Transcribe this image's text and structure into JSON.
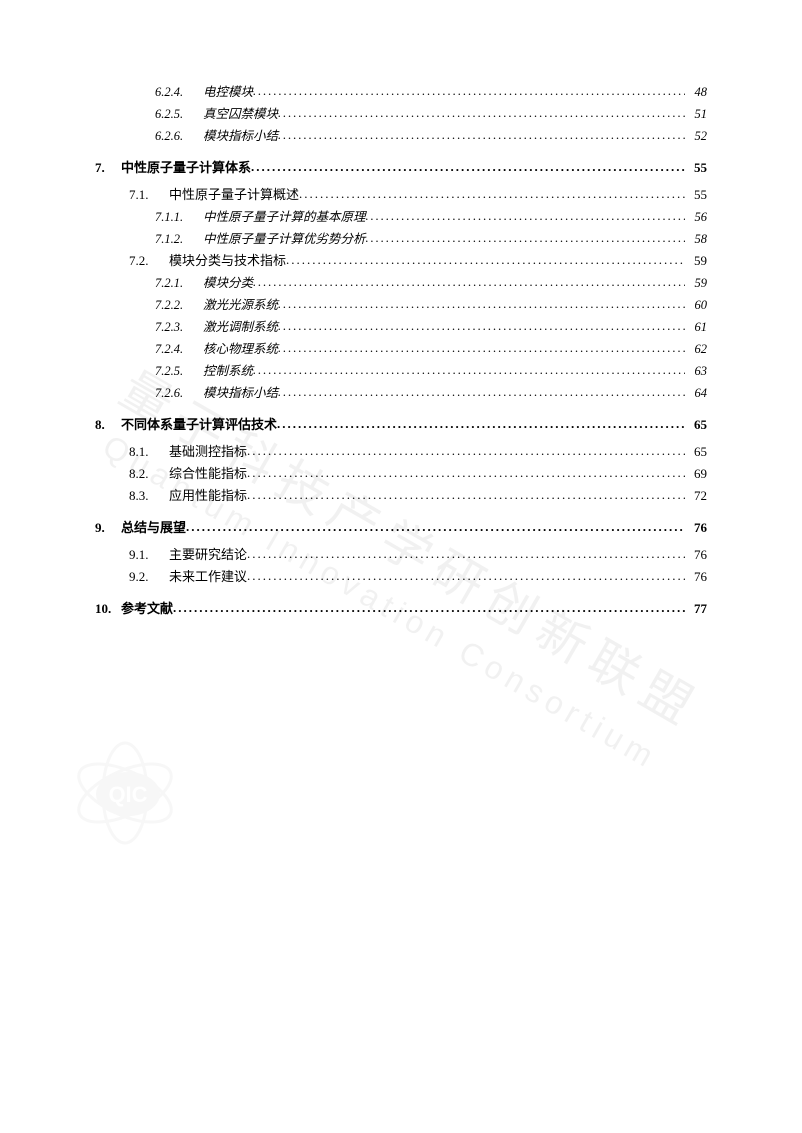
{
  "watermark": {
    "chinese": "量子科技产学研创新联盟",
    "english": "Quantum Innovation Consortium",
    "logo_text": "QIC"
  },
  "dots": "..........................................................................................................................................................................................",
  "toc": [
    {
      "level": 3,
      "num": "6.2.4.",
      "title": "电控模块",
      "page": "48"
    },
    {
      "level": 3,
      "num": "6.2.5.",
      "title": "真空囚禁模块",
      "page": "51"
    },
    {
      "level": 3,
      "num": "6.2.6.",
      "title": "模块指标小结",
      "page": "52"
    },
    {
      "level": 1,
      "num": "7.",
      "title": "中性原子量子计算体系",
      "page": "55"
    },
    {
      "level": 2,
      "num": "7.1.",
      "title": "中性原子量子计算概述",
      "page": "55"
    },
    {
      "level": 3,
      "num": "7.1.1.",
      "title": "中性原子量子计算的基本原理",
      "page": "56"
    },
    {
      "level": 3,
      "num": "7.1.2.",
      "title": "中性原子量子计算优劣势分析",
      "page": "58"
    },
    {
      "level": 2,
      "num": "7.2.",
      "title": "模块分类与技术指标",
      "page": "59"
    },
    {
      "level": 3,
      "num": "7.2.1.",
      "title": "模块分类",
      "page": "59"
    },
    {
      "level": 3,
      "num": "7.2.2.",
      "title": "激光光源系统",
      "page": "60"
    },
    {
      "level": 3,
      "num": "7.2.3.",
      "title": "激光调制系统",
      "page": "61"
    },
    {
      "level": 3,
      "num": "7.2.4.",
      "title": "核心物理系统",
      "page": "62"
    },
    {
      "level": 3,
      "num": "7.2.5.",
      "title": "控制系统",
      "page": "63"
    },
    {
      "level": 3,
      "num": "7.2.6.",
      "title": "模块指标小结",
      "page": "64"
    },
    {
      "level": 1,
      "num": "8.",
      "title": "不同体系量子计算评估技术",
      "page": "65"
    },
    {
      "level": 2,
      "num": "8.1.",
      "title": "基础测控指标",
      "page": "65"
    },
    {
      "level": 2,
      "num": "8.2.",
      "title": "综合性能指标",
      "page": "69"
    },
    {
      "level": 2,
      "num": "8.3.",
      "title": "应用性能指标",
      "page": "72"
    },
    {
      "level": 1,
      "num": "9.",
      "title": "总结与展望",
      "page": "76"
    },
    {
      "level": 2,
      "num": "9.1.",
      "title": "主要研究结论",
      "page": "76"
    },
    {
      "level": 2,
      "num": "9.2.",
      "title": "未来工作建议",
      "page": "76"
    },
    {
      "level": 1,
      "num": "10.",
      "title": "参考文献",
      "page": "77"
    }
  ]
}
